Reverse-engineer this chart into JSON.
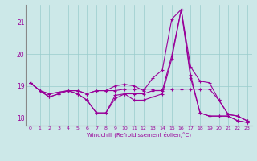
{
  "xlabel": "Windchill (Refroidissement éolien,°C)",
  "background_color": "#cce8e8",
  "grid_color": "#99cccc",
  "line_color": "#990099",
  "xlim": [
    -0.5,
    23.5
  ],
  "ylim": [
    17.75,
    21.55
  ],
  "yticks": [
    18,
    19,
    20,
    21
  ],
  "xticks": [
    0,
    1,
    2,
    3,
    4,
    5,
    6,
    7,
    8,
    9,
    10,
    11,
    12,
    13,
    14,
    15,
    16,
    17,
    18,
    19,
    20,
    21,
    22,
    23
  ],
  "series": [
    [
      19.1,
      18.85,
      18.75,
      18.8,
      18.85,
      18.85,
      18.75,
      18.85,
      18.85,
      18.85,
      18.9,
      18.9,
      18.9,
      18.9,
      18.9,
      18.9,
      18.9,
      18.9,
      18.9,
      18.9,
      18.55,
      18.1,
      18.05,
      17.9
    ],
    [
      19.1,
      18.85,
      18.75,
      18.8,
      18.85,
      18.85,
      18.75,
      18.85,
      18.85,
      19.0,
      19.05,
      19.0,
      18.85,
      19.25,
      19.5,
      21.1,
      21.4,
      19.6,
      19.15,
      19.1,
      18.55,
      18.1,
      18.05,
      17.9
    ],
    [
      19.1,
      18.85,
      18.65,
      18.75,
      18.85,
      18.75,
      18.55,
      18.15,
      18.15,
      18.7,
      18.75,
      18.75,
      18.75,
      18.85,
      18.85,
      19.95,
      21.4,
      19.35,
      18.15,
      18.05,
      18.05,
      18.05,
      17.9,
      17.85
    ],
    [
      19.1,
      18.85,
      18.65,
      18.75,
      18.85,
      18.75,
      18.55,
      18.15,
      18.15,
      18.6,
      18.75,
      18.55,
      18.55,
      18.65,
      18.75,
      19.85,
      21.4,
      19.25,
      18.15,
      18.05,
      18.05,
      18.05,
      17.9,
      17.85
    ]
  ]
}
